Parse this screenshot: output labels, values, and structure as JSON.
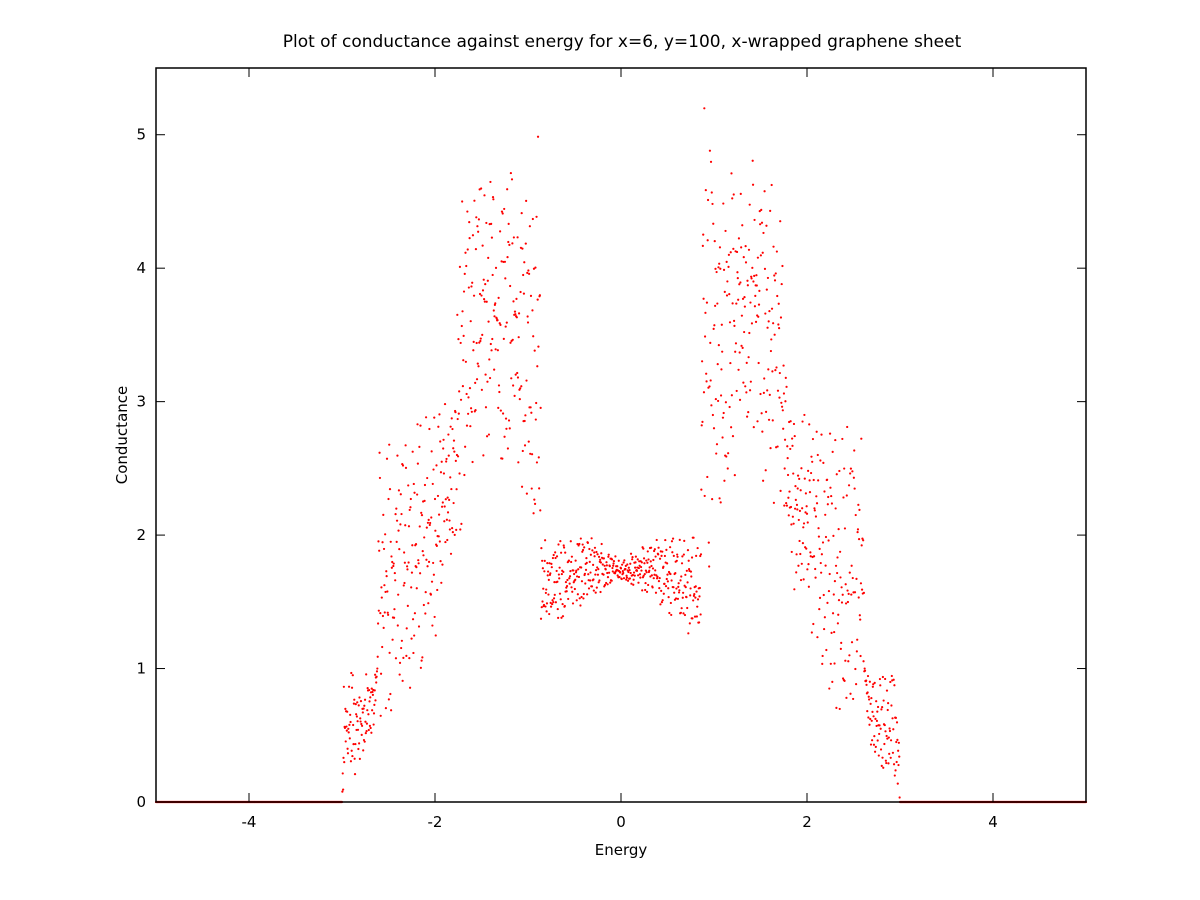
{
  "chart_data": {
    "type": "scatter",
    "title": "Plot of conductance against energy for x=6, y=100, x-wrapped graphene sheet",
    "xlabel": "Energy",
    "ylabel": "Conductance",
    "xlim": [
      -5,
      5
    ],
    "ylim": [
      0,
      5.5
    ],
    "x_ticks": [
      -4,
      -2,
      0,
      2,
      4
    ],
    "y_ticks": [
      0,
      1,
      2,
      3,
      4,
      5
    ],
    "grid": false,
    "legend": false,
    "series": [
      {
        "color": "#ff0000",
        "marker": "dot",
        "symmetric_about_zero": true,
        "x_step": 0.004,
        "x_range": [
          -5,
          5
        ],
        "envelope": {
          "abs_energy": [
            0.0,
            0.05,
            0.2,
            0.4,
            0.6,
            0.8,
            0.86,
            0.87,
            0.9,
            0.95,
            1.0,
            1.1,
            1.2,
            1.3,
            1.4,
            1.5,
            1.6,
            1.7,
            1.8,
            1.9,
            2.0,
            2.1,
            2.2,
            2.3,
            2.4,
            2.5,
            2.6,
            2.62,
            2.65,
            2.7,
            2.8,
            2.9,
            2.98,
            3.0,
            3.05,
            5.0
          ],
          "lower": [
            1.62,
            1.62,
            1.58,
            1.48,
            1.35,
            1.2,
            1.15,
            2.0,
            1.9,
            1.55,
            1.95,
            2.2,
            2.3,
            2.6,
            2.7,
            2.4,
            2.3,
            2.1,
            1.7,
            1.4,
            1.2,
            1.05,
            0.9,
            0.6,
            0.5,
            0.4,
            0.6,
            1.0,
            0.6,
            0.35,
            0.2,
            0.1,
            0.02,
            0.0,
            0.0,
            0.0
          ],
          "upper": [
            1.82,
            1.84,
            1.95,
            2.0,
            2.0,
            2.0,
            2.0,
            5.2,
            5.35,
            5.0,
            4.9,
            4.5,
            4.95,
            4.6,
            4.85,
            4.95,
            4.7,
            4.85,
            3.0,
            3.0,
            3.0,
            2.95,
            2.9,
            2.8,
            2.85,
            2.8,
            2.78,
            1.0,
            1.0,
            1.0,
            1.0,
            1.0,
            1.0,
            0.0,
            0.0,
            0.0
          ]
        }
      }
    ]
  }
}
